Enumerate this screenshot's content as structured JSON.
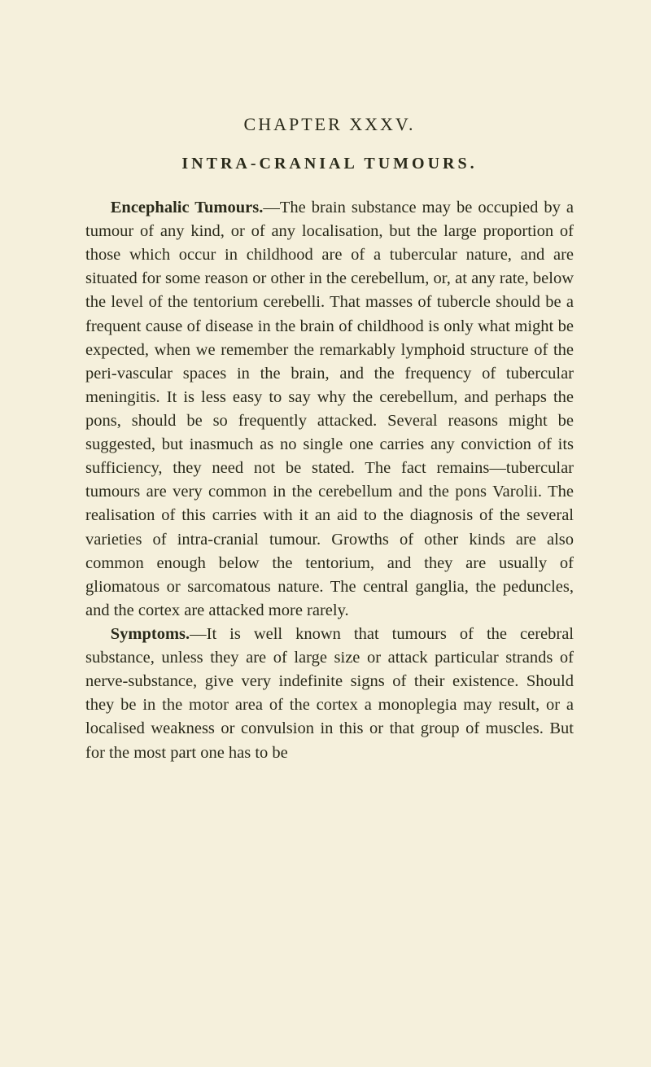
{
  "chapter": {
    "heading": "CHAPTER XXXV.",
    "section": "INTRA-CRANIAL TUMOURS."
  },
  "paragraphs": [
    {
      "boldTerm": "Encephalic Tumours.",
      "text": "—The brain substance may be occupied by a tumour of any kind, or of any localisation, but the large proportion of those which occur in childhood are of a tubercular nature, and are situated for some reason or other in the cerebellum, or, at any rate, below the level of the tentorium cerebelli. That masses of tubercle should be a frequent cause of disease in the brain of childhood is only what might be expected, when we remember the remarkably lymphoid structure of the peri-vascular spaces in the brain, and the frequency of tubercular meningitis. It is less easy to say why the cerebellum, and perhaps the pons, should be so frequently attacked. Several reasons might be suggested, but inasmuch as no single one carries any conviction of its sufficiency, they need not be stated. The fact remains—tubercular tumours are very common in the cerebellum and the pons Varolii. The realisation of this carries with it an aid to the diagnosis of the several varieties of intra-cranial tumour. Growths of other kinds are also common enough below the tentorium, and they are usually of gliomatous or sarcomatous nature. The central ganglia, the peduncles, and the cortex are attacked more rarely."
    },
    {
      "boldTerm": "Symptoms.",
      "text": "—It is well known that tumours of the cerebral substance, unless they are of large size or attack particular strands of nerve-substance, give very indefinite signs of their existence. Should they be in the motor area of the cortex a monoplegia may result, or a localised weakness or convulsion in this or that group of muscles. But for the most part one has to be"
    }
  ],
  "styling": {
    "backgroundColor": "#f5f0dc",
    "textColor": "#2a2a1a",
    "bodyFontSize": 20.5,
    "headingFontSize": 22,
    "sectionFontSize": 20,
    "lineHeight": 1.42,
    "pageWidth": 800,
    "pageHeight": 1311
  }
}
